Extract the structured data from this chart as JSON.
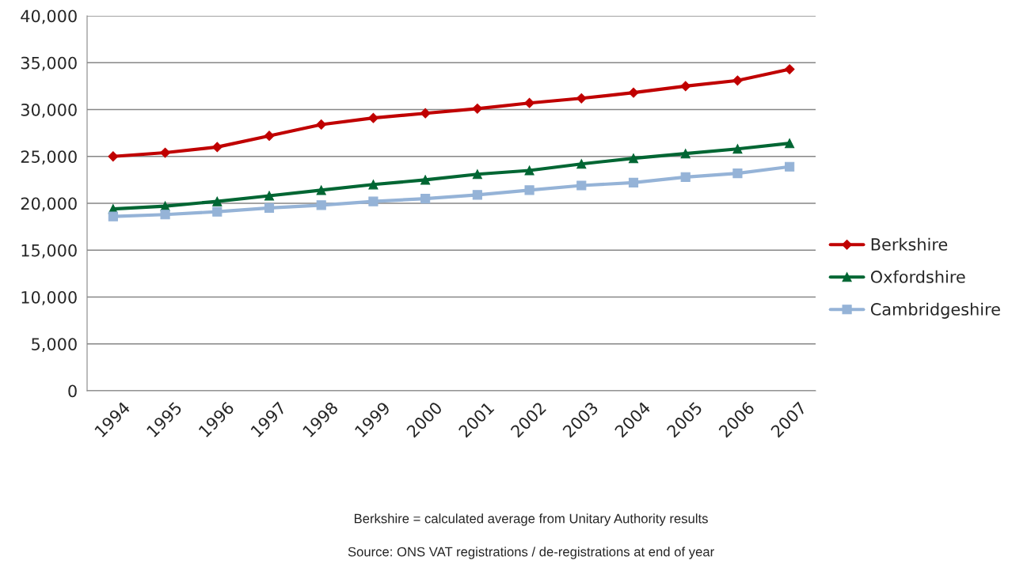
{
  "chart_data": {
    "type": "line",
    "categories": [
      "1994",
      "1995",
      "1996",
      "1997",
      "1998",
      "1999",
      "2000",
      "2001",
      "2002",
      "2003",
      "2004",
      "2005",
      "2006",
      "2007"
    ],
    "series": [
      {
        "name": "Berkshire",
        "color": "#c00000",
        "marker": "diamond",
        "values": [
          25000,
          25400,
          26000,
          27200,
          28400,
          29100,
          29600,
          30100,
          30700,
          31200,
          31800,
          32500,
          33100,
          34300
        ]
      },
      {
        "name": "Oxfordshire",
        "color": "#006633",
        "marker": "triangle",
        "values": [
          19400,
          19700,
          20200,
          20800,
          21400,
          22000,
          22500,
          23100,
          23500,
          24200,
          24800,
          25300,
          25800,
          26400
        ]
      },
      {
        "name": "Cambridgeshire",
        "color": "#95b3d7",
        "marker": "square",
        "values": [
          18600,
          18800,
          19100,
          19500,
          19800,
          20200,
          20500,
          20900,
          21400,
          21900,
          22200,
          22800,
          23200,
          23900
        ]
      }
    ],
    "ylim": [
      0,
      40000
    ],
    "yticks": [
      0,
      {
        "value": 5000,
        "label": "5,000"
      },
      {
        "value": 10000,
        "label": "10,000"
      },
      {
        "value": 15000,
        "label": "15,000"
      },
      {
        "value": 20000,
        "label": "20,000"
      },
      {
        "value": 25000,
        "label": "25,000"
      },
      {
        "value": 30000,
        "label": "30,000"
      },
      {
        "value": 35000,
        "label": "35,000"
      },
      {
        "value": 40000,
        "label": "40,000"
      }
    ],
    "grid": "y",
    "legend": "right",
    "line_style": "solid",
    "annotations": [
      "Berkshire = calculated average from Unitary Authority results",
      "Source: ONS VAT registrations / de-registrations at end of year"
    ]
  }
}
